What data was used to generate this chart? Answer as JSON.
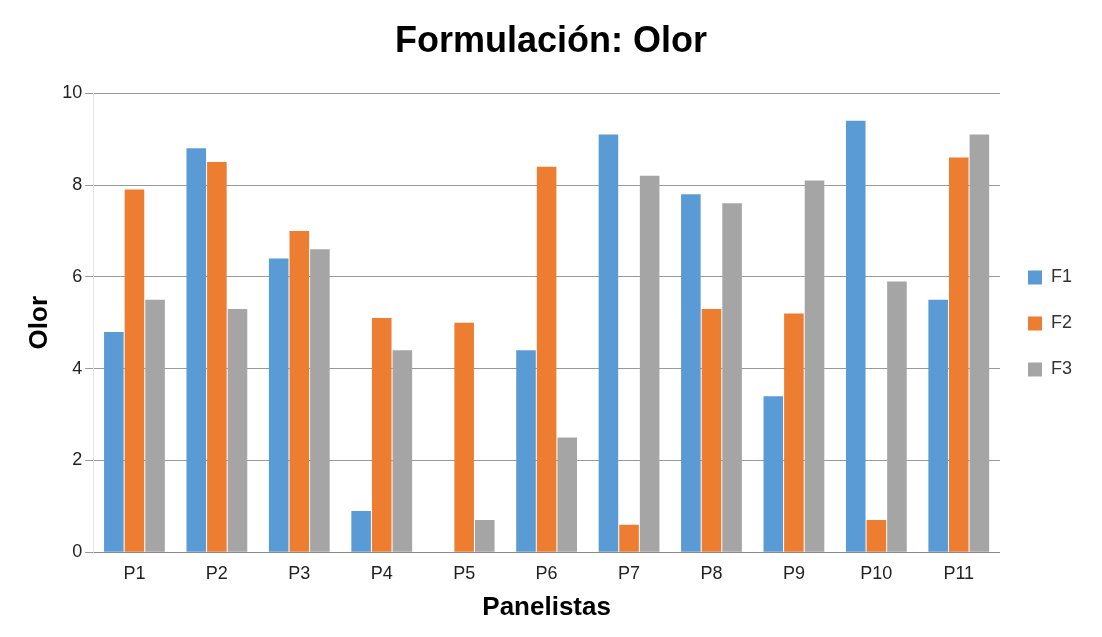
{
  "chart_data": {
    "type": "bar",
    "title": "Formulación: Olor",
    "xlabel": "Panelistas",
    "ylabel": "Olor",
    "categories": [
      "P1",
      "P2",
      "P3",
      "P4",
      "P5",
      "P6",
      "P7",
      "P8",
      "P9",
      "P10",
      "P11"
    ],
    "series": [
      {
        "name": "F1",
        "color": "#5b9bd5",
        "values": [
          4.8,
          8.8,
          6.4,
          0.9,
          0,
          4.4,
          9.1,
          7.8,
          3.4,
          9.4,
          5.5
        ]
      },
      {
        "name": "F2",
        "color": "#ed7d31",
        "values": [
          7.9,
          8.5,
          7.0,
          5.1,
          5.0,
          8.4,
          0.6,
          5.3,
          5.2,
          0.7,
          8.6
        ]
      },
      {
        "name": "F3",
        "color": "#a5a5a5",
        "values": [
          5.5,
          5.3,
          6.6,
          4.4,
          0.7,
          2.5,
          8.2,
          7.6,
          8.1,
          5.9,
          9.1
        ]
      }
    ],
    "ylim": [
      0,
      10
    ],
    "yticks": [
      0,
      2,
      4,
      6,
      8,
      10
    ],
    "grid": "y",
    "legend": "right"
  }
}
